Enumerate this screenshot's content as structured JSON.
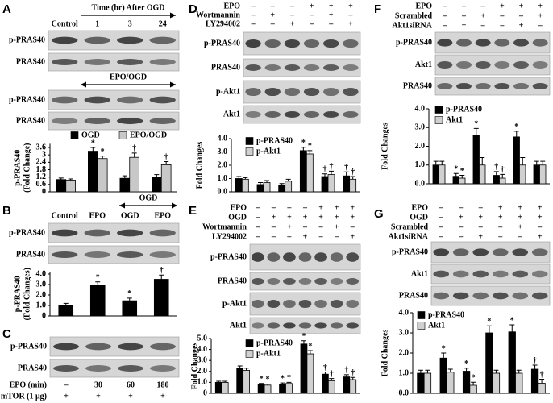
{
  "panels": [
    {
      "letter": "A",
      "columns": [
        "Control",
        "1",
        "3",
        "24"
      ],
      "brackets": [
        "Time (hr) After OGD",
        "EPO/OGD"
      ],
      "blots": [
        "p-PRAS40",
        "PRAS40",
        "p-PRAS40",
        "PRAS40"
      ]
    },
    {
      "letter": "B",
      "columns": [
        "Control",
        "EPO",
        "OGD",
        "EPO"
      ],
      "brackets": [
        "OGD"
      ],
      "blots": [
        "p-PRAS40",
        "PRAS40"
      ]
    },
    {
      "letter": "C",
      "blots": [
        "p-PRAS40",
        "PRAS40"
      ],
      "conditions": [
        {
          "label": "EPO (min)",
          "marks": [
            "–",
            "30",
            "60",
            "180"
          ]
        },
        {
          "label": "mTOR (1 μg)",
          "marks": [
            "+",
            "+",
            "+",
            "+"
          ]
        }
      ]
    },
    {
      "letter": "D",
      "conditions": [
        {
          "label": "EPO",
          "marks": [
            "–",
            "–",
            "–",
            "+",
            "+",
            "+"
          ]
        },
        {
          "label": "Wortmannin",
          "marks": [
            "–",
            "+",
            "–",
            "–",
            "+",
            "–"
          ]
        },
        {
          "label": "LY294002",
          "marks": [
            "–",
            "–",
            "+",
            "–",
            "–",
            "+"
          ]
        }
      ],
      "blots": [
        "p-PRAS40",
        "PRAS40",
        "p-Akt1",
        "Akt1"
      ]
    },
    {
      "letter": "E",
      "conditions": [
        {
          "label": "EPO",
          "marks": [
            "–",
            "–",
            "–",
            "–",
            "+",
            "+",
            "+"
          ]
        },
        {
          "label": "OGD",
          "marks": [
            "–",
            "+",
            "+",
            "+",
            "+",
            "+",
            "+"
          ]
        },
        {
          "label": "Wortmannin",
          "marks": [
            "–",
            "–",
            "+",
            "–",
            "–",
            "+",
            "–"
          ]
        },
        {
          "label": "LY294002",
          "marks": [
            "–",
            "–",
            "–",
            "+",
            "–",
            "–",
            "+"
          ]
        }
      ],
      "blots": [
        "p-PRAS40",
        "PRAS40",
        "p-Akt1",
        "Akt1"
      ]
    },
    {
      "letter": "F",
      "conditions": [
        {
          "label": "EPO",
          "marks": [
            "–",
            "–",
            "–",
            "+",
            "+",
            "+"
          ]
        },
        {
          "label": "Scrambled",
          "marks": [
            "–",
            "–",
            "+",
            "–",
            "–",
            "+"
          ]
        },
        {
          "label": "Akt1siRNA",
          "marks": [
            "–",
            "+",
            "–",
            "–",
            "+",
            "–"
          ]
        }
      ],
      "blots": [
        "p-PRAS40",
        "Akt1",
        "PRAS40"
      ]
    },
    {
      "letter": "G",
      "conditions": [
        {
          "label": "EPO",
          "marks": [
            "–",
            "–",
            "–",
            "+",
            "+",
            "+"
          ]
        },
        {
          "label": "OGD",
          "marks": [
            "–",
            "+",
            "+",
            "+",
            "+",
            "+"
          ]
        },
        {
          "label": "Scrambled",
          "marks": [
            "–",
            "–",
            "–",
            "–",
            "+",
            "–"
          ]
        },
        {
          "label": "Akt1siRNA",
          "marks": [
            "–",
            "–",
            "+",
            "–",
            "–",
            "+"
          ]
        }
      ],
      "blots": [
        "p-PRAS40",
        "Akt1",
        "PRAS40"
      ]
    }
  ],
  "chart_data": [
    {
      "type": "bar",
      "ylabel": [
        "p-PRAS40",
        "(Fold Change)"
      ],
      "ylim": [
        0,
        3.9
      ],
      "yticks": [
        0,
        0.6,
        1.2,
        1.8,
        2.4,
        3,
        3.6
      ],
      "series": [
        {
          "name": "OGD",
          "color": "#000000",
          "values": [
            1.0,
            3.3,
            1.1,
            1.2
          ],
          "errors": [
            0.12,
            0.3,
            0.2,
            0.2
          ],
          "annotations": [
            null,
            "*",
            null,
            null
          ]
        },
        {
          "name": "EPO/OGD",
          "color": "#c8c8c8",
          "values": [
            0.95,
            2.7,
            2.8,
            2.2
          ],
          "errors": [
            0.1,
            0.2,
            0.35,
            0.25
          ],
          "annotations": [
            null,
            "*",
            "†",
            "†"
          ]
        }
      ]
    },
    {
      "type": "bar",
      "ylabel": [
        "p-PRAS40",
        "(Fold Changes)"
      ],
      "ylim": [
        0,
        4.2
      ],
      "yticks": [
        0,
        {
          "value": 1,
          "label": "1.0"
        },
        {
          "value": 2,
          "label": "2.0"
        },
        {
          "value": 3,
          "label": "3.0"
        },
        {
          "value": 4,
          "label": "4.0"
        }
      ],
      "series": [
        {
          "color": "#000000",
          "values": [
            1.0,
            2.9,
            1.45,
            3.5
          ],
          "errors": [
            0.2,
            0.35,
            0.25,
            0.4
          ],
          "annotations": [
            null,
            "*",
            "*",
            "†"
          ]
        }
      ]
    },
    {
      "type": "bar",
      "ylabel": "Fold Changes",
      "ylim": [
        0,
        4
      ],
      "yticks": [
        {
          "value": 0,
          "label": "0.0"
        },
        {
          "value": 1,
          "label": "1.0"
        },
        {
          "value": 2,
          "label": "2.0"
        },
        {
          "value": 3,
          "label": "3.0"
        },
        {
          "value": 4,
          "label": "4.0"
        }
      ],
      "series": [
        {
          "name": "p-PRAS40",
          "color": "#000000",
          "values": [
            1.0,
            0.55,
            0.5,
            3.1,
            1.15,
            1.2
          ],
          "errors": [
            0.15,
            0.15,
            0.12,
            0.25,
            0.2,
            0.3
          ],
          "annotations": [
            null,
            null,
            null,
            "*",
            "†",
            "†"
          ]
        },
        {
          "name": "p-Akt1",
          "color": "#d0d0d0",
          "values": [
            0.95,
            0.7,
            0.8,
            2.85,
            1.3,
            0.95
          ],
          "errors": [
            0.12,
            0.15,
            0.15,
            0.25,
            0.25,
            0.2
          ],
          "annotations": [
            null,
            null,
            null,
            "*",
            "†",
            "†"
          ]
        }
      ]
    },
    {
      "type": "bar",
      "ylabel": "Fold Changes",
      "ylim": [
        0,
        5
      ],
      "yticks": [
        0,
        {
          "value": 1,
          "label": "1.0"
        },
        {
          "value": 2,
          "label": "2.0"
        },
        {
          "value": 3,
          "label": "3.0"
        },
        {
          "value": 4,
          "label": "4.0"
        },
        {
          "value": 5,
          "label": "5.0"
        }
      ],
      "series": [
        {
          "name": "p-PRAS40",
          "color": "#000000",
          "values": [
            1.0,
            2.3,
            0.8,
            0.85,
            4.5,
            1.75,
            1.5
          ],
          "errors": [
            0.1,
            0.2,
            0.1,
            0.1,
            0.3,
            0.2,
            0.2
          ],
          "annotations": [
            null,
            null,
            "*",
            "*",
            "*",
            "†",
            "†"
          ]
        },
        {
          "name": "p-Akt1",
          "color": "#d0d0d0",
          "values": [
            1.0,
            2.1,
            0.75,
            0.9,
            3.6,
            1.15,
            1.25
          ],
          "errors": [
            0.1,
            0.2,
            0.1,
            0.1,
            0.3,
            0.2,
            0.2
          ],
          "annotations": [
            null,
            null,
            "*",
            "*",
            "*",
            "†",
            "†"
          ]
        }
      ]
    },
    {
      "type": "bar",
      "ylabel": "Fold Changes",
      "ylim": [
        0,
        4
      ],
      "yticks": [
        {
          "value": 0,
          "label": "0.0"
        },
        {
          "value": 1,
          "label": "1.0"
        },
        {
          "value": 2,
          "label": "2.0"
        },
        {
          "value": 3,
          "label": "3.0"
        },
        {
          "value": 4,
          "label": "4.0"
        }
      ],
      "series": [
        {
          "name": "p-PRAS40",
          "color": "#000000",
          "values": [
            1.0,
            0.4,
            2.6,
            0.45,
            2.5,
            1.0
          ],
          "errors": [
            0.2,
            0.15,
            0.35,
            0.2,
            0.3,
            0.2
          ],
          "annotations": [
            null,
            "*",
            "*",
            "†",
            "*",
            null
          ]
        },
        {
          "name": "Akt1",
          "color": "#d0d0d0",
          "values": [
            1.0,
            0.3,
            1.0,
            0.3,
            1.0,
            1.0
          ],
          "errors": [
            0.2,
            0.15,
            0.4,
            0.2,
            0.4,
            0.2
          ],
          "annotations": [
            null,
            "*",
            null,
            "†",
            null,
            null
          ]
        }
      ]
    },
    {
      "type": "bar",
      "ylabel": "Fold Changes",
      "ylim": [
        0,
        4
      ],
      "yticks": [
        {
          "value": 0,
          "label": "0.0"
        },
        {
          "value": 1,
          "label": "1.0"
        },
        {
          "value": 2,
          "label": "2.0"
        },
        {
          "value": 3,
          "label": "3.0"
        },
        {
          "value": 4,
          "label": "4.0"
        }
      ],
      "series": [
        {
          "name": "p-PRAS40",
          "color": "#000000",
          "values": [
            1.0,
            1.75,
            1.1,
            3.0,
            3.05,
            1.2
          ],
          "errors": [
            0.15,
            0.25,
            0.15,
            0.35,
            0.35,
            0.2
          ],
          "annotations": [
            null,
            "*",
            "*",
            "*",
            "*",
            "†"
          ]
        },
        {
          "name": "Akt1",
          "color": "#d0d0d0",
          "values": [
            1.0,
            1.05,
            0.4,
            1.0,
            1.0,
            0.5
          ],
          "errors": [
            0.15,
            0.15,
            0.15,
            0.15,
            0.15,
            0.2
          ],
          "annotations": [
            null,
            null,
            "*",
            null,
            null,
            "†"
          ]
        }
      ]
    }
  ]
}
